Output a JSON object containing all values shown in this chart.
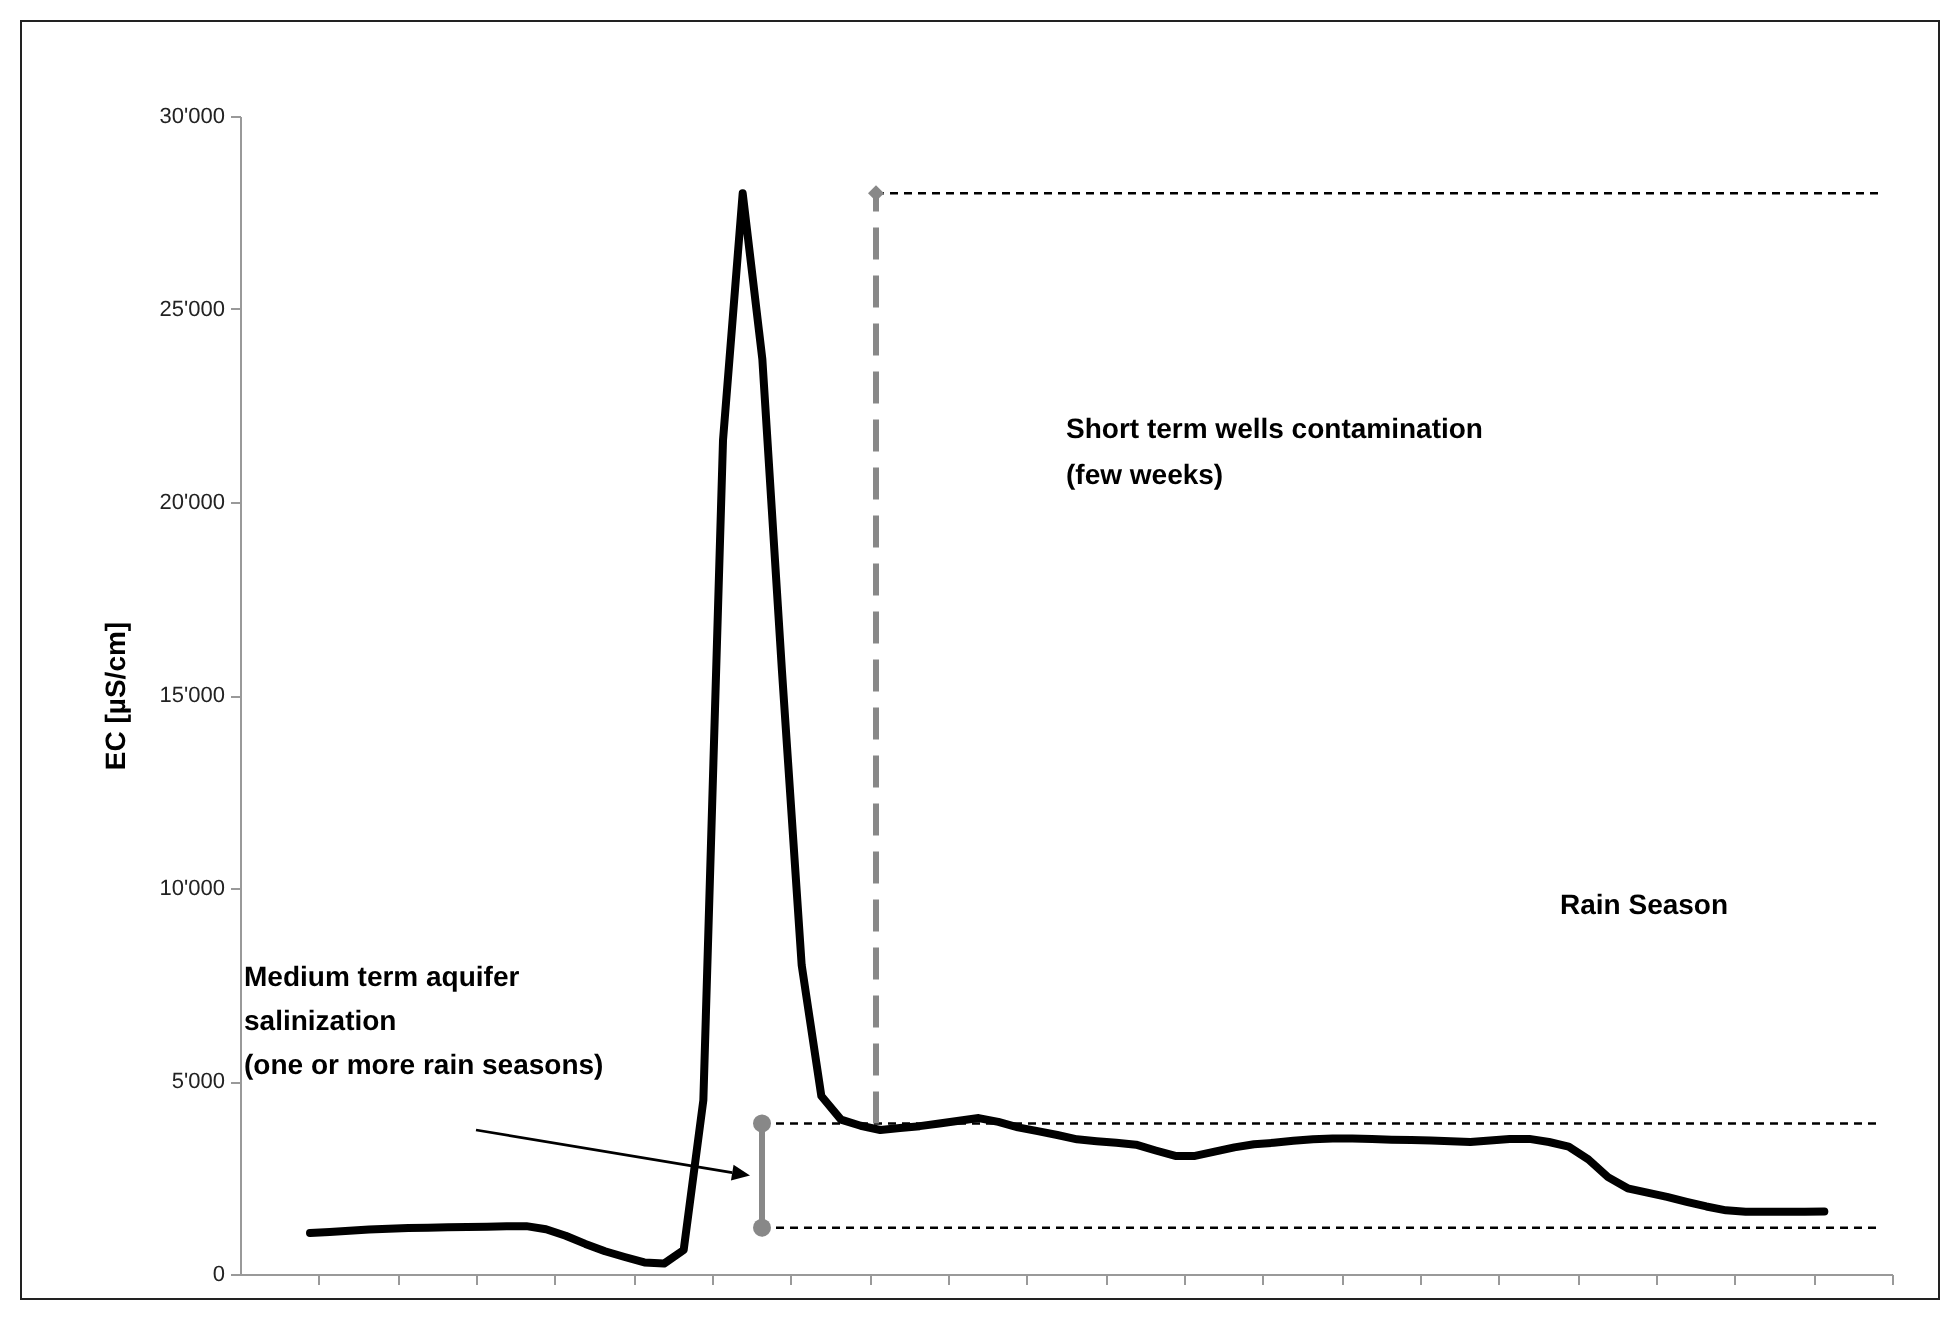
{
  "chart_data": {
    "type": "line",
    "ylabel": "EC [µS/cm]",
    "categories": [
      null,
      null,
      null,
      null,
      null,
      null,
      null,
      null,
      null,
      null,
      null,
      null,
      null,
      null,
      null,
      null,
      null,
      null,
      null,
      null,
      null,
      null,
      null,
      null,
      null,
      null,
      null,
      null,
      null,
      null,
      null,
      null,
      null,
      null,
      null,
      null,
      null,
      null,
      null,
      null,
      null,
      null,
      null,
      null,
      null,
      null,
      null,
      null,
      null,
      null,
      null,
      null,
      null,
      null,
      null,
      null,
      null,
      null,
      null,
      null,
      null,
      null,
      null,
      null,
      null,
      null,
      null,
      null,
      null,
      null,
      null,
      null,
      null,
      null,
      null,
      null,
      null,
      null
    ],
    "ylim": [
      0,
      30000
    ],
    "yticks": [
      0,
      {
        "value": 5000,
        "label": "5'000"
      },
      {
        "value": 10000,
        "label": "10'000"
      },
      {
        "value": 15000,
        "label": "15'000"
      },
      {
        "value": 20000,
        "label": "20'000"
      },
      {
        "value": 25000,
        "label": "25'000"
      },
      {
        "value": 30000,
        "label": "30'000"
      }
    ],
    "tick_labels": "y",
    "grid": false,
    "marker": "none",
    "line_style": "solid",
    "series": [
      {
        "color": "#000000",
        "values": [
          1060,
          1090,
          1120,
          1150,
          1170,
          1190,
          1200,
          1210,
          1220,
          1225,
          1235,
          1240,
          1160,
          990,
          780,
          590,
          440,
          300,
          270,
          620,
          4500,
          21600,
          28000,
          23700,
          15600,
          8000,
          4610,
          4000,
          3840,
          3730,
          3780,
          3830,
          3900,
          3970,
          4040,
          3940,
          3800,
          3700,
          3600,
          3490,
          3440,
          3400,
          3350,
          3200,
          3060,
          3060,
          3170,
          3280,
          3360,
          3400,
          3450,
          3490,
          3510,
          3510,
          3500,
          3480,
          3470,
          3460,
          3440,
          3420,
          3460,
          3500,
          3500,
          3420,
          3300,
          2970,
          2510,
          2220,
          2110,
          2000,
          1870,
          1750,
          1650,
          1610,
          1610,
          1610,
          1610,
          1620
        ]
      }
    ],
    "ref_lines": [
      {
        "axis": "y",
        "value": 28000,
        "color": "#000000",
        "line_style": "dashed"
      },
      {
        "axis": "y",
        "value": 3900,
        "color": "#000000",
        "line_style": "dashed"
      },
      {
        "axis": "y",
        "value": 1200,
        "color": "#000000",
        "line_style": "dashed"
      }
    ],
    "annotations": [
      "Short term wells contamination\n(few weeks)",
      "Rain Season",
      "Medium term aquifer\nsalinization\n(one or more rain seasons)"
    ]
  }
}
